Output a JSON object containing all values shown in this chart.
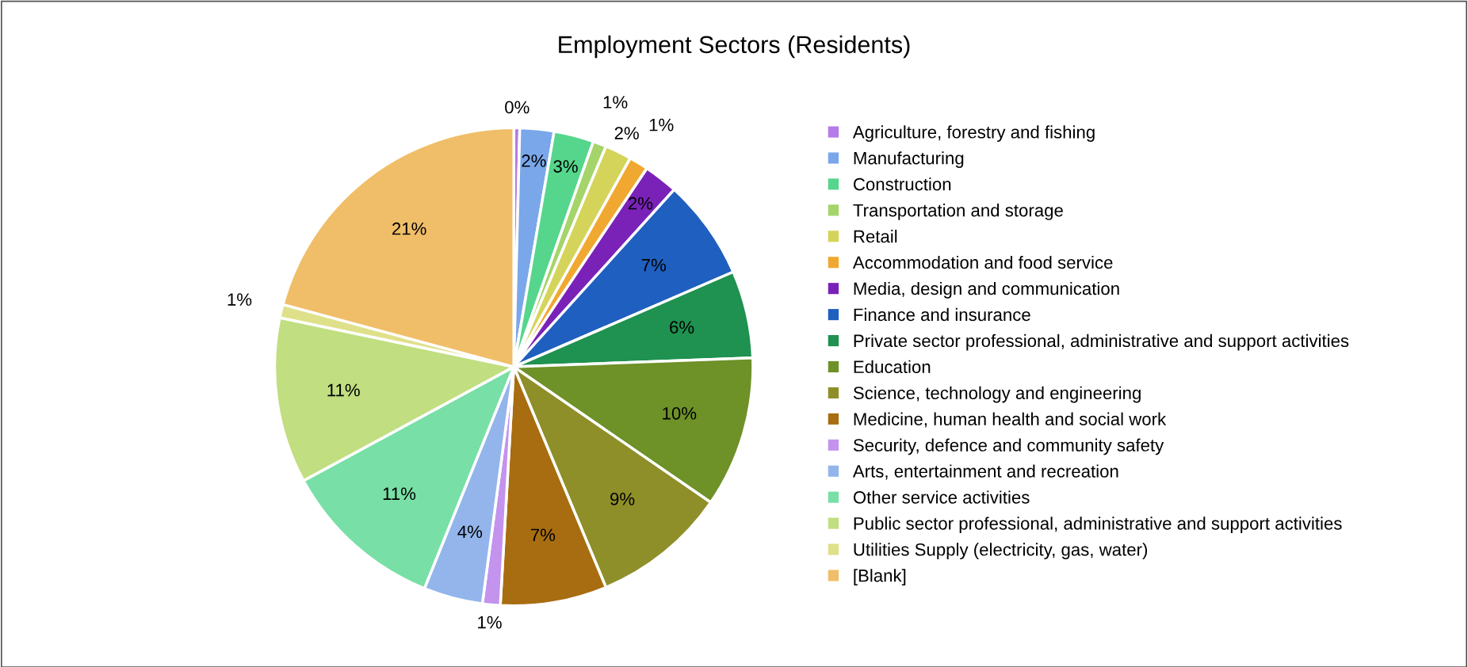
{
  "chart_data": {
    "type": "pie",
    "title": "Employment Sectors (Residents)",
    "categories": [
      "Agriculture, forestry and fishing",
      "Manufacturing",
      "Construction",
      "Transportation and storage",
      "Retail",
      "Accommodation and food service",
      "Media, design and communication",
      "Finance and insurance",
      "Private sector professional, administrative and support activities",
      "Education",
      "Science, technology and engineering",
      "Medicine, human health and social work",
      "Security, defence and community safety",
      "Arts, entertainment and recreation",
      "Other service activities",
      "Public sector professional, administrative and support activities",
      "Utilities Supply (electricity, gas, water)",
      "[Blank]"
    ],
    "values": [
      0.4,
      2.3,
      2.7,
      0.9,
      1.8,
      1.3,
      2.3,
      6.8,
      5.9,
      10.2,
      9.1,
      7.2,
      1.2,
      4.0,
      11.0,
      11.2,
      0.9,
      20.8
    ],
    "value_labels": [
      "0%",
      "2%",
      "3%",
      "1%",
      "2%",
      "1%",
      "2%",
      "7%",
      "6%",
      "10%",
      "9%",
      "7%",
      "1%",
      "4%",
      "11%",
      "11%",
      "1%",
      "21%"
    ],
    "colors": [
      "#b57be8",
      "#7aa7ea",
      "#55d68c",
      "#a5d46a",
      "#d4d45a",
      "#f0a830",
      "#7a22b8",
      "#1f5fbf",
      "#1f9150",
      "#6e9128",
      "#8f8f2a",
      "#a86d10",
      "#c393ee",
      "#93b5ec",
      "#78dfa6",
      "#c1de80",
      "#dfe08a",
      "#f0be68"
    ],
    "legend": "right"
  }
}
